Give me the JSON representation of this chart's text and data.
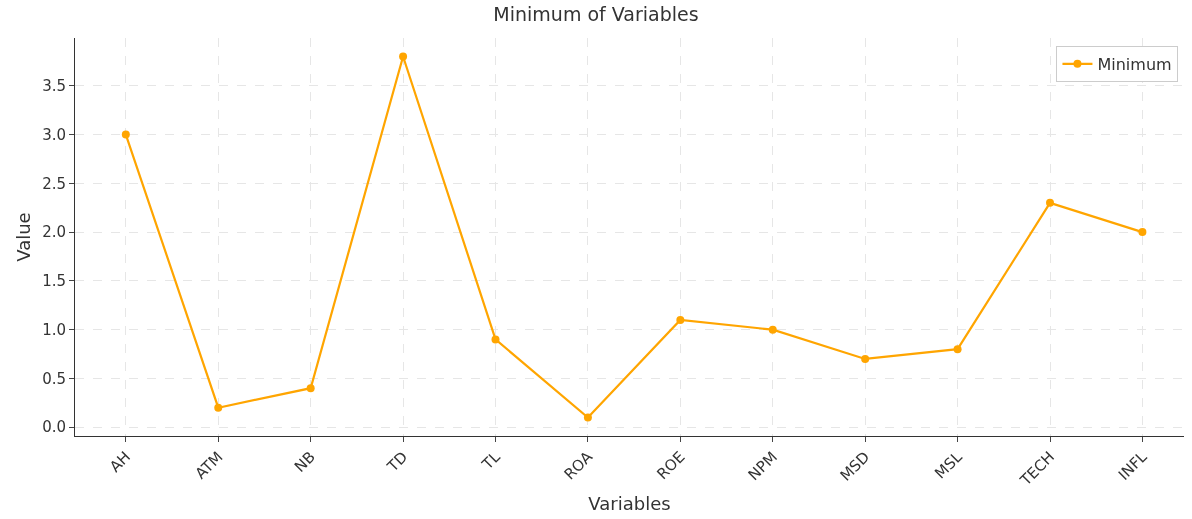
{
  "chart_data": {
    "type": "line",
    "title": "Minimum of Variables",
    "xlabel": "Variables",
    "ylabel": "Value",
    "categories": [
      "AH",
      "ATM",
      "NB",
      "TD",
      "TL",
      "ROA",
      "ROE",
      "NPM",
      "MSD",
      "MSL",
      "TECH",
      "INFL"
    ],
    "series": [
      {
        "name": "Minimum",
        "color": "#ffa500",
        "values": [
          3.0,
          0.2,
          0.4,
          3.8,
          0.9,
          0.1,
          1.1,
          1.0,
          0.7,
          0.8,
          2.3,
          2.0
        ]
      }
    ],
    "ylim": [
      -0.09,
      3.99
    ],
    "yticks": [
      {
        "value": 0.0,
        "label": "0.0"
      },
      {
        "value": 0.5,
        "label": "0.5"
      },
      {
        "value": 1.0,
        "label": "1.0"
      },
      {
        "value": 1.5,
        "label": "1.5"
      },
      {
        "value": 2.0,
        "label": "2.0"
      },
      {
        "value": 2.5,
        "label": "2.5"
      },
      {
        "value": 3.0,
        "label": "3.0"
      },
      {
        "value": 3.5,
        "label": "3.5"
      }
    ],
    "grid": true,
    "legend": "top right",
    "marker": "circle",
    "line_style": "solid"
  }
}
